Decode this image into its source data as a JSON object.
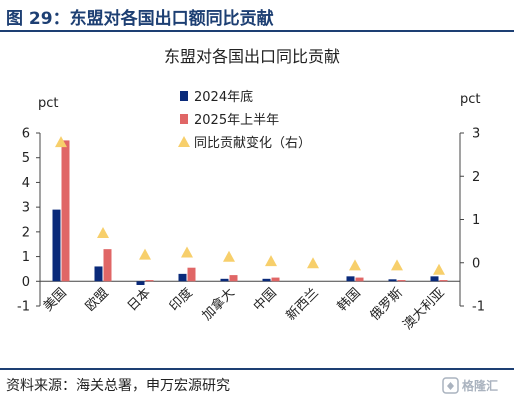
{
  "figure_title": "图 29：东盟对各国出口额同比贡献",
  "source_text": "资料来源：海关总署，申万宏源研究",
  "logo_text": "格隆汇",
  "chart_data": {
    "type": "bar",
    "title": "东盟对各国出口同比贡献",
    "categories": [
      "美国",
      "欧盟",
      "日本",
      "印度",
      "加拿大",
      "中国",
      "新西兰",
      "韩国",
      "俄罗斯",
      "澳大利亚"
    ],
    "series": [
      {
        "name": "2024年底",
        "type": "bar",
        "axis": "left",
        "color": "#0a2a7a",
        "values": [
          2.9,
          0.6,
          -0.15,
          0.3,
          0.1,
          0.1,
          0.0,
          0.2,
          0.08,
          0.2
        ]
      },
      {
        "name": "2025年上半年",
        "type": "bar",
        "axis": "left",
        "color": "#e06666",
        "values": [
          5.7,
          1.3,
          0.05,
          0.55,
          0.25,
          0.15,
          0.0,
          0.15,
          0.05,
          0.05
        ]
      },
      {
        "name": "同比贡献变化（右）",
        "type": "scatter",
        "marker": "triangle",
        "axis": "right",
        "color": "#f7cf6b",
        "values": [
          2.8,
          0.7,
          0.2,
          0.25,
          0.15,
          0.05,
          0.0,
          -0.05,
          -0.05,
          -0.15
        ]
      }
    ],
    "ylabel_left": "pct",
    "ylabel_right": "pct",
    "ylim_left": [
      -1,
      6
    ],
    "ylim_right": [
      -1,
      3
    ],
    "yticks_left": [
      -1,
      0,
      1,
      2,
      3,
      4,
      5,
      6
    ],
    "yticks_right": [
      -1,
      0,
      1,
      2,
      3
    ],
    "grid": false,
    "legend_position": "top-center"
  }
}
